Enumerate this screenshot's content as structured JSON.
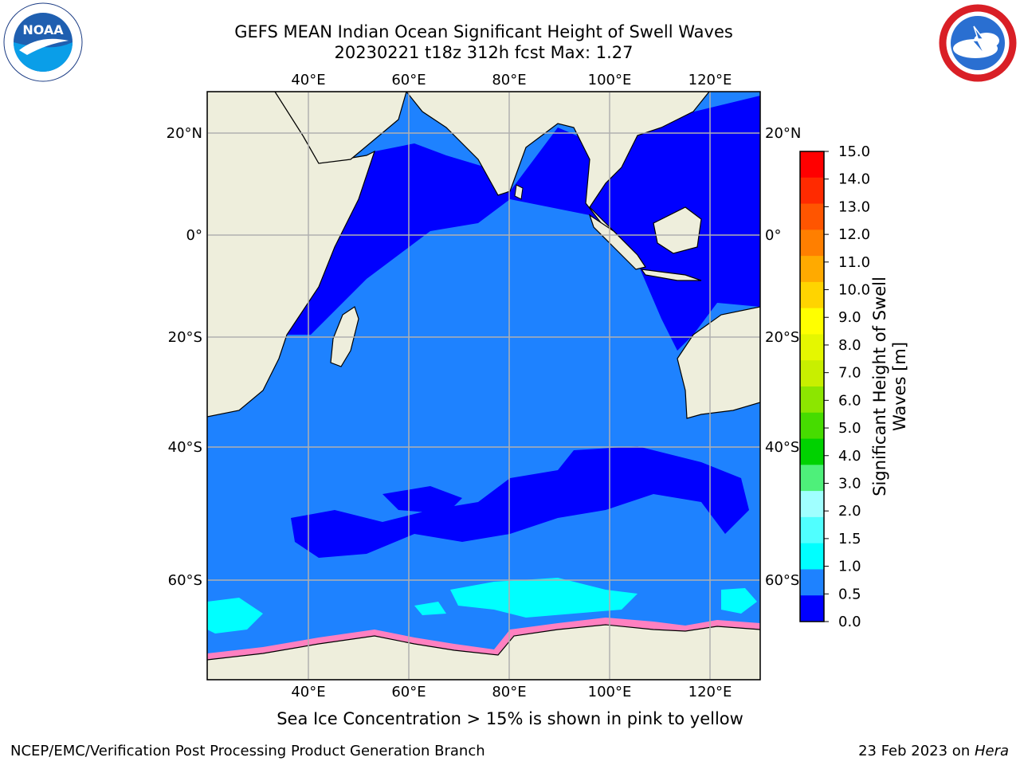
{
  "title": {
    "line1": "GEFS MEAN Indian Ocean Significant Height of Swell Waves",
    "line2": "20230221 t18z 312h fcst   Max: 1.27"
  },
  "logos": {
    "left": "noaa-logo",
    "right": "nws-logo"
  },
  "axes": {
    "lon_ticks": [
      "40°E",
      "60°E",
      "80°E",
      "100°E",
      "120°E"
    ],
    "lat_ticks": [
      "20°N",
      "0°",
      "20°S",
      "40°S",
      "60°S"
    ]
  },
  "colorbar": {
    "title_line1": "Significant Height of Swell",
    "title_line2": "Waves [m]",
    "ticks": [
      "15.0",
      "14.0",
      "13.0",
      "12.0",
      "11.0",
      "10.0",
      "9.0",
      "8.0",
      "7.0",
      "6.0",
      "5.0",
      "4.0",
      "3.0",
      "2.0",
      "1.5",
      "1.0",
      "0.5",
      "0.0"
    ],
    "colors": [
      "#ff0000",
      "#ff2a00",
      "#ff5500",
      "#ff7f00",
      "#ffaa00",
      "#ffd400",
      "#ffff00",
      "#e5f700",
      "#c8ef00",
      "#8ce600",
      "#46dc00",
      "#00d200",
      "#4ef07a",
      "#a0ffff",
      "#50ffff",
      "#00ffff",
      "#1e82ff",
      "#0000ff"
    ]
  },
  "legend_note": "Sea Ice Concentration > 15% is shown in pink to yellow",
  "footer": {
    "left": "NCEP/EMC/Verification Post Processing Product Generation Branch",
    "right_date": "23 Feb 2023 on ",
    "right_host": "Hera"
  },
  "colors": {
    "land": "#eeeedc",
    "ocean_low": "#1e82ff",
    "ocean_lowest": "#0000ff",
    "ice_band": "#00ffff",
    "sea_ice": "#ff80c0"
  }
}
